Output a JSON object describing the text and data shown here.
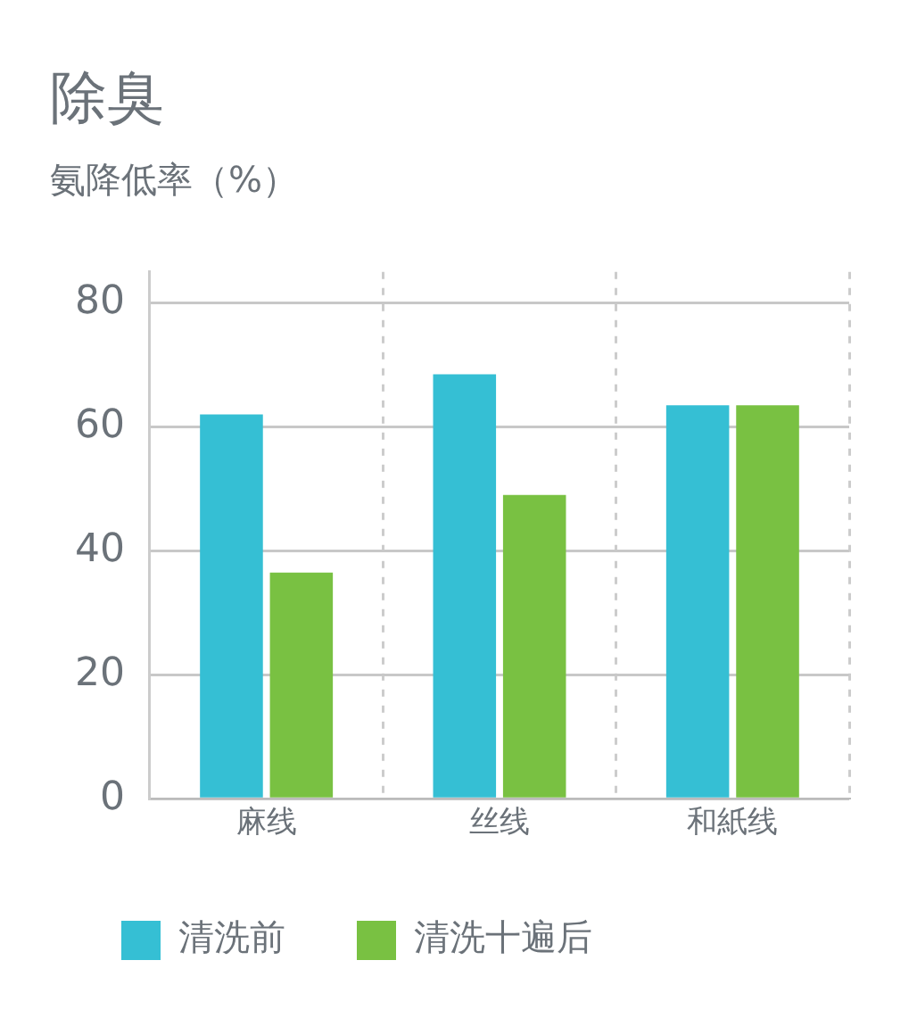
{
  "chart_data": {
    "type": "bar",
    "title": "除臭",
    "subtitle": "氨降低率（%）",
    "categories": [
      "麻线",
      "丝线",
      "和紙线"
    ],
    "series": [
      {
        "name": "清洗前",
        "color": "#35bfd4",
        "values": [
          62,
          68.5,
          63.5
        ]
      },
      {
        "name": "清洗十遍后",
        "color": "#79c142",
        "values": [
          36.5,
          49,
          63.5
        ]
      }
    ],
    "ylim": [
      0,
      85
    ],
    "yticks": [
      0,
      20,
      40,
      60,
      80
    ],
    "grid": true,
    "legend": "bottom"
  }
}
